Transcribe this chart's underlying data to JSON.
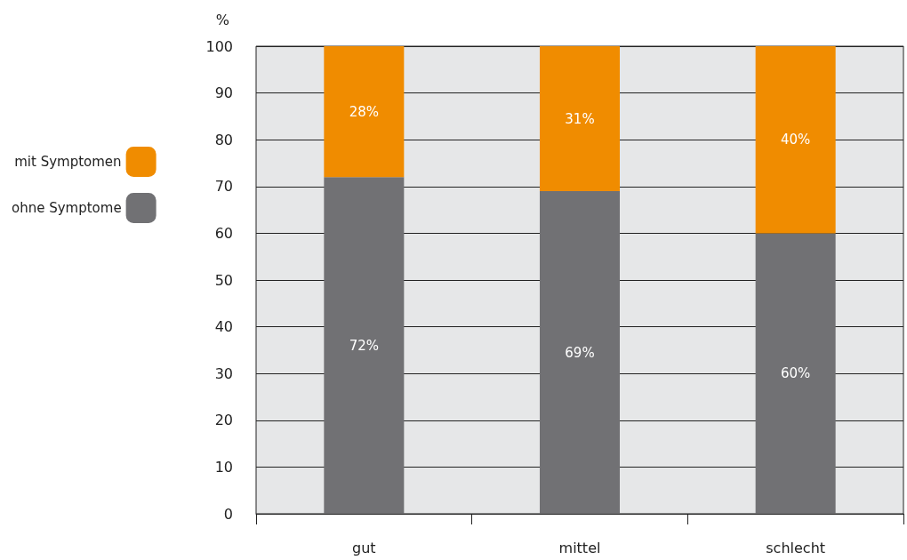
{
  "chart_data": {
    "type": "bar",
    "stacked": true,
    "ylabel": "%",
    "categories": [
      "gut",
      "mittel",
      "schlecht"
    ],
    "series": [
      {
        "name": "ohne Symptome",
        "color": "#717174",
        "values": [
          72,
          69,
          60
        ],
        "value_labels": [
          "72%",
          "69%",
          "60%"
        ]
      },
      {
        "name": "mit Symptomen",
        "color": "#f08c00",
        "values": [
          28,
          31,
          40
        ],
        "value_labels": [
          "28%",
          "31%",
          "40%"
        ]
      }
    ],
    "ylim": [
      0,
      100
    ],
    "yticks": [
      0,
      10,
      20,
      30,
      40,
      50,
      60,
      70,
      80,
      90,
      100
    ],
    "grid": "y",
    "legend": "left"
  }
}
